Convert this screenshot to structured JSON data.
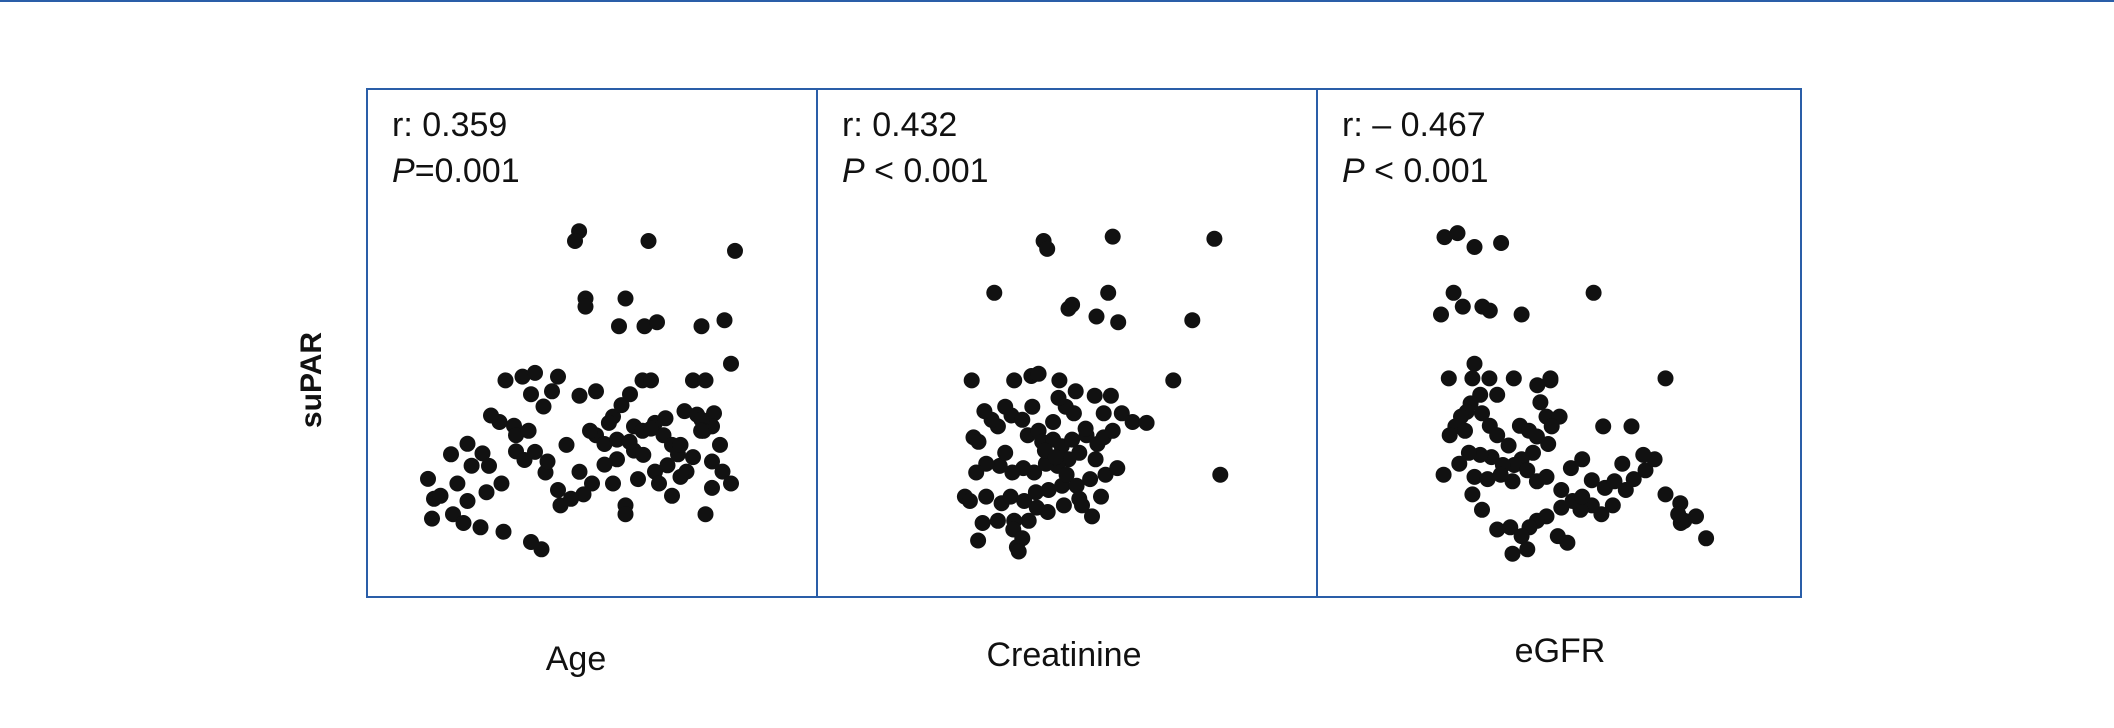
{
  "chart_data": {
    "type": "scatter",
    "ylabel": "suPAR",
    "panels": [
      {
        "xlabel": "Age",
        "r_label": "r: 0.359",
        "p_prefix": "P",
        "p_rest": "=0.001",
        "points": [
          [
            0.463,
            0.99
          ],
          [
            0.453,
            0.945
          ],
          [
            0.635,
            0.945
          ],
          [
            0.849,
            0.9
          ],
          [
            0.479,
            0.683
          ],
          [
            0.479,
            0.646
          ],
          [
            0.578,
            0.683
          ],
          [
            0.562,
            0.557
          ],
          [
            0.625,
            0.557
          ],
          [
            0.656,
            0.575
          ],
          [
            0.766,
            0.557
          ],
          [
            0.823,
            0.584
          ],
          [
            0.839,
            0.386
          ],
          [
            0.281,
            0.31
          ],
          [
            0.323,
            0.327
          ],
          [
            0.354,
            0.344
          ],
          [
            0.411,
            0.327
          ],
          [
            0.396,
            0.26
          ],
          [
            0.344,
            0.247
          ],
          [
            0.375,
            0.191
          ],
          [
            0.302,
            0.103
          ],
          [
            0.187,
            0.021
          ],
          [
            0.146,
            -0.027
          ],
          [
            0.224,
            -0.023
          ],
          [
            0.307,
            -0.014
          ],
          [
            0.328,
            -0.053
          ],
          [
            0.197,
            -0.079
          ],
          [
            0.089,
            -0.139
          ],
          [
            0.104,
            -0.23
          ],
          [
            0.12,
            -0.216
          ],
          [
            0.151,
            -0.3
          ],
          [
            0.099,
            -0.32
          ],
          [
            0.177,
            -0.34
          ],
          [
            0.219,
            -0.36
          ],
          [
            0.276,
            -0.38
          ],
          [
            0.344,
            -0.427
          ],
          [
            0.37,
            -0.46
          ],
          [
            0.417,
            -0.26
          ],
          [
            0.464,
            -0.107
          ],
          [
            0.464,
            0.24
          ],
          [
            0.505,
            0.26
          ],
          [
            0.547,
            0.145
          ],
          [
            0.568,
            0.197
          ],
          [
            0.589,
            0.247
          ],
          [
            0.62,
            0.31
          ],
          [
            0.641,
            0.31
          ],
          [
            0.505,
            0.06
          ],
          [
            0.526,
            0.02
          ],
          [
            0.557,
            0.04
          ],
          [
            0.599,
            0.1
          ],
          [
            0.62,
            0.08
          ],
          [
            0.651,
            0.116
          ],
          [
            0.672,
            0.06
          ],
          [
            0.693,
            0.016
          ],
          [
            0.708,
            -0.027
          ],
          [
            0.714,
            0.016
          ],
          [
            0.745,
            0.31
          ],
          [
            0.776,
            0.31
          ],
          [
            0.724,
            0.17
          ],
          [
            0.755,
            0.154
          ],
          [
            0.797,
            0.16
          ],
          [
            0.792,
            0.1
          ],
          [
            0.766,
            0.13
          ],
          [
            0.771,
            0.08
          ],
          [
            0.765,
            0.08
          ],
          [
            0.677,
            0.137
          ],
          [
            0.641,
            0.09
          ],
          [
            0.599,
            -0.01
          ],
          [
            0.557,
            -0.05
          ],
          [
            0.526,
            -0.074
          ],
          [
            0.495,
            -0.16
          ],
          [
            0.474,
            -0.21
          ],
          [
            0.443,
            -0.23
          ],
          [
            0.411,
            -0.19
          ],
          [
            0.38,
            -0.11
          ],
          [
            0.354,
            -0.016
          ],
          [
            0.307,
            0.06
          ],
          [
            0.266,
            0.12
          ],
          [
            0.245,
            0.15
          ],
          [
            0.271,
            -0.16
          ],
          [
            0.234,
            -0.2
          ],
          [
            0.187,
            -0.24
          ],
          [
            0.162,
            -0.16
          ],
          [
            0.24,
            -0.08
          ],
          [
            0.547,
            -0.16
          ],
          [
            0.578,
            -0.26
          ],
          [
            0.609,
            -0.14
          ],
          [
            0.651,
            -0.106
          ],
          [
            0.693,
            -0.216
          ],
          [
            0.729,
            -0.106
          ],
          [
            0.792,
            -0.06
          ],
          [
            0.818,
            -0.106
          ],
          [
            0.792,
            -0.18
          ],
          [
            0.776,
            -0.3
          ],
          [
            0.682,
            -0.077
          ],
          [
            0.622,
            -0.03
          ],
          [
            0.588,
            0.03
          ],
          [
            0.537,
            0.116
          ],
          [
            0.49,
            0.08
          ],
          [
            0.432,
            0.016
          ],
          [
            0.385,
            -0.06
          ],
          [
            0.338,
            0.08
          ],
          [
            0.578,
            -0.3
          ],
          [
            0.661,
            -0.16
          ],
          [
            0.714,
            -0.13
          ],
          [
            0.745,
            -0.04
          ],
          [
            0.812,
            0.016
          ],
          [
            0.839,
            -0.16
          ]
        ]
      },
      {
        "xlabel": "Creatinine",
        "r_label": "r: 0.432",
        "p_prefix": "P",
        "p_rest": " < 0.001",
        "points": [
          [
            0.446,
            0.945
          ],
          [
            0.454,
            0.909
          ],
          [
            0.599,
            0.965
          ],
          [
            0.824,
            0.955
          ],
          [
            0.337,
            0.709
          ],
          [
            0.589,
            0.709
          ],
          [
            0.501,
            0.637
          ],
          [
            0.509,
            0.655
          ],
          [
            0.563,
            0.601
          ],
          [
            0.611,
            0.575
          ],
          [
            0.775,
            0.584
          ],
          [
            0.733,
            0.31
          ],
          [
            0.837,
            -0.12
          ],
          [
            0.287,
            0.31
          ],
          [
            0.381,
            0.31
          ],
          [
            0.419,
            0.33
          ],
          [
            0.435,
            0.34
          ],
          [
            0.481,
            0.31
          ],
          [
            0.517,
            0.26
          ],
          [
            0.513,
            0.16
          ],
          [
            0.559,
            0.24
          ],
          [
            0.595,
            0.24
          ],
          [
            0.619,
            0.16
          ],
          [
            0.643,
            0.12
          ],
          [
            0.674,
            0.116
          ],
          [
            0.495,
            0.19
          ],
          [
            0.479,
            0.23
          ],
          [
            0.291,
            0.05
          ],
          [
            0.302,
            0.03
          ],
          [
            0.345,
            0.1
          ],
          [
            0.375,
            0.15
          ],
          [
            0.399,
            0.13
          ],
          [
            0.411,
            0.06
          ],
          [
            0.435,
            0.08
          ],
          [
            0.443,
            0.03
          ],
          [
            0.467,
            0.04
          ],
          [
            0.486,
            0.01
          ],
          [
            0.509,
            0.04
          ],
          [
            0.541,
            0.06
          ],
          [
            0.565,
            0.02
          ],
          [
            0.579,
            0.05
          ],
          [
            0.525,
            -0.02
          ],
          [
            0.501,
            -0.05
          ],
          [
            0.477,
            -0.08
          ],
          [
            0.451,
            -0.07
          ],
          [
            0.425,
            -0.11
          ],
          [
            0.401,
            -0.09
          ],
          [
            0.377,
            -0.11
          ],
          [
            0.349,
            -0.08
          ],
          [
            0.319,
            -0.07
          ],
          [
            0.297,
            -0.11
          ],
          [
            0.272,
            -0.22
          ],
          [
            0.283,
            -0.24
          ],
          [
            0.319,
            -0.22
          ],
          [
            0.353,
            -0.25
          ],
          [
            0.373,
            -0.22
          ],
          [
            0.403,
            -0.24
          ],
          [
            0.429,
            -0.2
          ],
          [
            0.457,
            -0.19
          ],
          [
            0.487,
            -0.17
          ],
          [
            0.519,
            -0.17
          ],
          [
            0.549,
            -0.14
          ],
          [
            0.583,
            -0.12
          ],
          [
            0.609,
            -0.09
          ],
          [
            0.525,
            -0.23
          ],
          [
            0.491,
            -0.26
          ],
          [
            0.455,
            -0.29
          ],
          [
            0.431,
            -0.27
          ],
          [
            0.413,
            -0.33
          ],
          [
            0.381,
            -0.33
          ],
          [
            0.345,
            -0.33
          ],
          [
            0.311,
            -0.34
          ],
          [
            0.379,
            -0.37
          ],
          [
            0.399,
            -0.41
          ],
          [
            0.301,
            -0.42
          ],
          [
            0.387,
            -0.45
          ],
          [
            0.391,
            -0.47
          ],
          [
            0.531,
            -0.26
          ],
          [
            0.561,
            -0.05
          ],
          [
            0.539,
            0.09
          ],
          [
            0.467,
            0.12
          ],
          [
            0.421,
            0.19
          ],
          [
            0.361,
            0.19
          ],
          [
            0.331,
            0.13
          ],
          [
            0.315,
            0.17
          ],
          [
            0.361,
            -0.02
          ],
          [
            0.449,
            -0.01
          ],
          [
            0.473,
            -0.04
          ],
          [
            0.497,
            -0.12
          ],
          [
            0.573,
            -0.22
          ],
          [
            0.553,
            -0.31
          ],
          [
            0.579,
            0.16
          ],
          [
            0.599,
            0.08
          ]
        ]
      },
      {
        "xlabel": "eGFR",
        "r_label": "r: – 0.467",
        "p_prefix": "P",
        "p_rest": " < 0.001",
        "points": [
          [
            0.235,
            0.963
          ],
          [
            0.265,
            0.981
          ],
          [
            0.304,
            0.918
          ],
          [
            0.365,
            0.936
          ],
          [
            0.256,
            0.709
          ],
          [
            0.277,
            0.646
          ],
          [
            0.227,
            0.61
          ],
          [
            0.322,
            0.646
          ],
          [
            0.339,
            0.628
          ],
          [
            0.412,
            0.61
          ],
          [
            0.577,
            0.709
          ],
          [
            0.742,
            0.319
          ],
          [
            0.785,
            -0.33
          ],
          [
            0.835,
            -0.41
          ],
          [
            0.304,
            0.386
          ],
          [
            0.299,
            0.319
          ],
          [
            0.338,
            0.319
          ],
          [
            0.394,
            0.319
          ],
          [
            0.245,
            0.319
          ],
          [
            0.317,
            0.244
          ],
          [
            0.356,
            0.244
          ],
          [
            0.478,
            0.319
          ],
          [
            0.478,
            0.31
          ],
          [
            0.448,
            0.288
          ],
          [
            0.295,
            0.205
          ],
          [
            0.286,
            0.166
          ],
          [
            0.273,
            0.145
          ],
          [
            0.26,
            0.1
          ],
          [
            0.247,
            0.06
          ],
          [
            0.282,
            0.08
          ],
          [
            0.321,
            0.16
          ],
          [
            0.339,
            0.103
          ],
          [
            0.356,
            0.06
          ],
          [
            0.382,
            0.013
          ],
          [
            0.408,
            0.103
          ],
          [
            0.429,
            0.08
          ],
          [
            0.447,
            0.054
          ],
          [
            0.469,
            0.145
          ],
          [
            0.455,
            0.21
          ],
          [
            0.499,
            0.145
          ],
          [
            0.481,
            0.1
          ],
          [
            0.473,
            0.02
          ],
          [
            0.438,
            -0.02
          ],
          [
            0.412,
            -0.05
          ],
          [
            0.395,
            -0.076
          ],
          [
            0.369,
            -0.076
          ],
          [
            0.343,
            -0.04
          ],
          [
            0.317,
            -0.03
          ],
          [
            0.291,
            -0.02
          ],
          [
            0.269,
            -0.07
          ],
          [
            0.233,
            -0.12
          ],
          [
            0.304,
            -0.13
          ],
          [
            0.334,
            -0.14
          ],
          [
            0.364,
            -0.12
          ],
          [
            0.391,
            -0.15
          ],
          [
            0.425,
            -0.1
          ],
          [
            0.447,
            -0.15
          ],
          [
            0.469,
            -0.13
          ],
          [
            0.503,
            -0.19
          ],
          [
            0.525,
            -0.09
          ],
          [
            0.551,
            -0.05
          ],
          [
            0.573,
            -0.145
          ],
          [
            0.603,
            -0.18
          ],
          [
            0.625,
            -0.15
          ],
          [
            0.651,
            -0.19
          ],
          [
            0.669,
            -0.14
          ],
          [
            0.696,
            -0.1
          ],
          [
            0.717,
            -0.05
          ],
          [
            0.643,
            -0.07
          ],
          [
            0.599,
            0.1
          ],
          [
            0.621,
            -0.26
          ],
          [
            0.595,
            -0.3
          ],
          [
            0.573,
            -0.26
          ],
          [
            0.547,
            -0.28
          ],
          [
            0.529,
            -0.24
          ],
          [
            0.503,
            -0.27
          ],
          [
            0.469,
            -0.31
          ],
          [
            0.447,
            -0.33
          ],
          [
            0.43,
            -0.36
          ],
          [
            0.412,
            -0.4
          ],
          [
            0.386,
            -0.36
          ],
          [
            0.356,
            -0.37
          ],
          [
            0.321,
            -0.28
          ],
          [
            0.299,
            -0.21
          ],
          [
            0.495,
            -0.4
          ],
          [
            0.517,
            -0.43
          ],
          [
            0.425,
            -0.46
          ],
          [
            0.391,
            -0.48
          ],
          [
            0.551,
            -0.22
          ],
          [
            0.777,
            -0.34
          ],
          [
            0.776,
            -0.25
          ],
          [
            0.771,
            -0.3
          ],
          [
            0.742,
            -0.21
          ],
          [
            0.812,
            -0.31
          ],
          [
            0.691,
            -0.03
          ],
          [
            0.664,
            0.1
          ]
        ]
      }
    ]
  }
}
